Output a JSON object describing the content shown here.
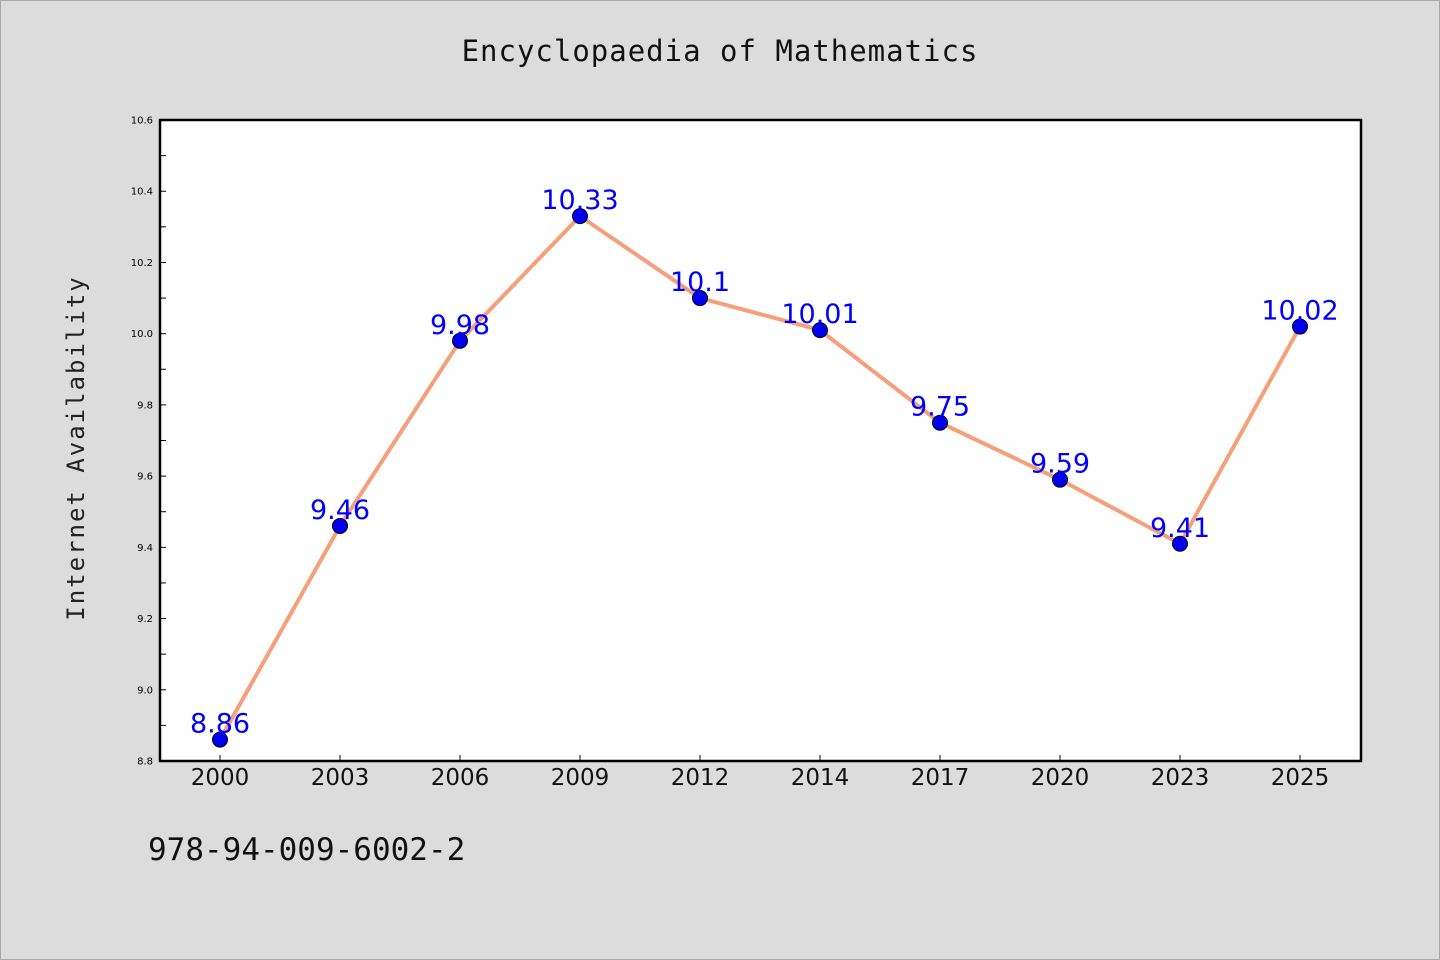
{
  "title": "Encyclopaedia of Mathematics",
  "ylabel": "Internet Availability",
  "note": "978-94-009-6002-2",
  "colors": {
    "background": "#dcdcdc",
    "plot_area": "#ffffff",
    "line": "#f5a07a",
    "marker": "#0000ee",
    "data_label": "#0000ff"
  },
  "chart_data": {
    "type": "line",
    "title": "Encyclopaedia of Mathematics",
    "xlabel": "",
    "ylabel": "Internet Availability",
    "categories": [
      "2000",
      "2003",
      "2006",
      "2009",
      "2012",
      "2014",
      "2017",
      "2020",
      "2023",
      "2025"
    ],
    "series": [
      {
        "values": [
          8.86,
          9.46,
          9.98,
          10.33,
          10.1,
          10.01,
          9.75,
          9.59,
          9.41,
          10.02
        ],
        "labels": [
          "8.86",
          "9.46",
          "9.98",
          "10.33",
          "10.1",
          "10.01",
          "9.75",
          "9.59",
          "9.41",
          "10.02"
        ]
      }
    ],
    "ylim": [
      8.8,
      10.6
    ],
    "yticks": [
      "8.8",
      "9.0",
      "9.2",
      "9.4",
      "9.6",
      "9.8",
      "10.0",
      "10.2",
      "10.4",
      "10.6"
    ],
    "grid": false,
    "legend": "none"
  }
}
